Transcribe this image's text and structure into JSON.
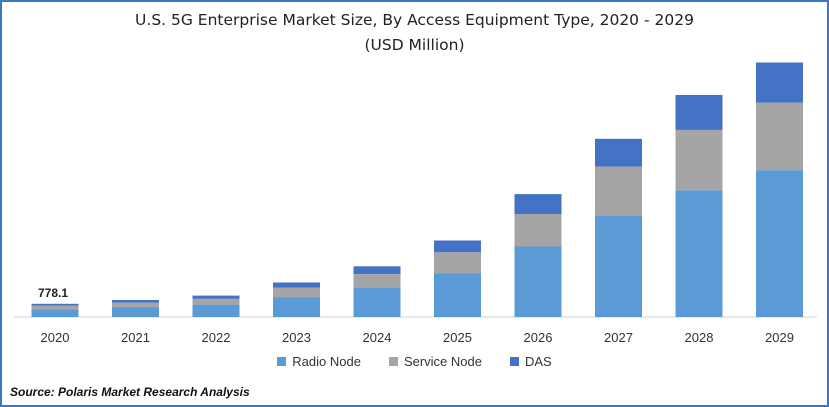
{
  "title_line1": "U.S. 5G Enterprise Market Size, By Access Equipment Type, 2020 - 2029",
  "title_line2": "(USD Million)",
  "source": "Source: Polaris  Market Research Analysis",
  "chart_data": {
    "type": "bar",
    "stacked": true,
    "title": "U.S. 5G Enterprise Market Size, By Access Equipment Type, 2020 - 2029 (USD Million)",
    "categories": [
      "2020",
      "2021",
      "2022",
      "2023",
      "2024",
      "2025",
      "2026",
      "2027",
      "2028",
      "2029"
    ],
    "series": [
      {
        "name": "Radio Node",
        "color": "#5b9bd5",
        "values": [
          460,
          580,
          730,
          1170,
          1710,
          2580,
          4150,
          5980,
          7460,
          8640
        ]
      },
      {
        "name": "Service Node",
        "color": "#a5a5a5",
        "values": [
          210,
          270,
          340,
          560,
          810,
          1230,
          1910,
          2870,
          3550,
          3970
        ]
      },
      {
        "name": "DAS",
        "color": "#4472c4",
        "values": [
          108,
          150,
          190,
          300,
          460,
          690,
          1170,
          1630,
          2050,
          2360
        ]
      }
    ],
    "data_labels": [
      {
        "category": "2020",
        "text": "778.1"
      }
    ],
    "ylim": [
      0,
      15000
    ],
    "y_axis_visible": false,
    "grid": false,
    "legend": "bottom"
  }
}
